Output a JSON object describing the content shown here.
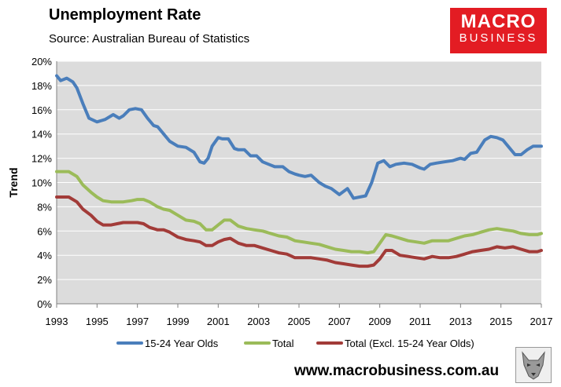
{
  "header": {
    "title": "Unemployment Rate",
    "subtitle": "Source: Australian Bureau of Statistics"
  },
  "logo": {
    "line1": "MACRO",
    "line2": "BUSINESS",
    "color": "#e31c23"
  },
  "footer": {
    "url": "www.macrobusiness.com.au",
    "icon": "wolf-icon"
  },
  "colors": {
    "plot_bg": "#dcdcdc",
    "youth": "#4a7ebb",
    "total": "#9bbb59",
    "excl": "#a23b38"
  },
  "chart_data": {
    "type": "line",
    "title": "Unemployment Rate",
    "xlabel": "",
    "ylabel": "Trend",
    "xlim": [
      1993,
      2017
    ],
    "ylim": [
      0,
      20
    ],
    "x_ticks": [
      1993,
      1995,
      1997,
      1999,
      2001,
      2003,
      2005,
      2007,
      2009,
      2011,
      2013,
      2015,
      2017
    ],
    "x_tick_labels": [
      "1993",
      "1995",
      "1997",
      "1999",
      "2001",
      "2003",
      "2005",
      "2007",
      "2009",
      "2011",
      "2013",
      "2015",
      "2017"
    ],
    "y_ticks": [
      0,
      2,
      4,
      6,
      8,
      10,
      12,
      14,
      16,
      18,
      20
    ],
    "y_tick_labels": [
      "0%",
      "2%",
      "4%",
      "6%",
      "8%",
      "10%",
      "12%",
      "14%",
      "16%",
      "18%",
      "20%"
    ],
    "legend_position": "bottom",
    "series": [
      {
        "name": "15-24 Year Olds",
        "color": "#4a7ebb",
        "x": [
          1993.0,
          1993.2,
          1993.5,
          1993.8,
          1994.0,
          1994.3,
          1994.6,
          1995.0,
          1995.4,
          1995.8,
          1996.1,
          1996.3,
          1996.6,
          1996.9,
          1997.2,
          1997.5,
          1997.8,
          1998.0,
          1998.3,
          1998.6,
          1999.0,
          1999.4,
          1999.8,
          2000.1,
          2000.3,
          2000.5,
          2000.7,
          2001.0,
          2001.2,
          2001.5,
          2001.8,
          2002.0,
          2002.3,
          2002.6,
          2002.9,
          2003.2,
          2003.5,
          2003.8,
          2004.2,
          2004.5,
          2004.8,
          2005.0,
          2005.3,
          2005.6,
          2006.0,
          2006.3,
          2006.6,
          2007.0,
          2007.4,
          2007.7,
          2008.0,
          2008.3,
          2008.6,
          2008.9,
          2009.2,
          2009.5,
          2009.8,
          2010.2,
          2010.6,
          2011.0,
          2011.2,
          2011.5,
          2011.8,
          2012.2,
          2012.6,
          2013.0,
          2013.2,
          2013.5,
          2013.8,
          2014.2,
          2014.5,
          2014.8,
          2015.1,
          2015.4,
          2015.7,
          2016.0,
          2016.3,
          2016.6,
          2016.9,
          2017.0
        ],
        "values": [
          18.8,
          18.4,
          18.6,
          18.3,
          17.8,
          16.5,
          15.3,
          15.0,
          15.2,
          15.6,
          15.3,
          15.5,
          16.0,
          16.1,
          16.0,
          15.3,
          14.7,
          14.6,
          14.0,
          13.4,
          13.0,
          12.9,
          12.5,
          11.7,
          11.6,
          12.0,
          13.0,
          13.7,
          13.6,
          13.6,
          12.8,
          12.7,
          12.7,
          12.2,
          12.2,
          11.7,
          11.5,
          11.3,
          11.3,
          10.9,
          10.7,
          10.6,
          10.5,
          10.6,
          10.0,
          9.7,
          9.5,
          9.0,
          9.5,
          8.7,
          8.8,
          8.9,
          10.0,
          11.6,
          11.8,
          11.3,
          11.5,
          11.6,
          11.5,
          11.2,
          11.1,
          11.5,
          11.6,
          11.7,
          11.8,
          12.0,
          11.9,
          12.4,
          12.5,
          13.5,
          13.8,
          13.7,
          13.5,
          12.9,
          12.3,
          12.3,
          12.7,
          13.0,
          13.0,
          13.0
        ]
      },
      {
        "name": "Total",
        "color": "#9bbb59",
        "x": [
          1993.0,
          1993.3,
          1993.6,
          1994.0,
          1994.3,
          1994.7,
          1995.0,
          1995.3,
          1995.7,
          1996.0,
          1996.3,
          1996.7,
          1997.0,
          1997.3,
          1997.6,
          1998.0,
          1998.3,
          1998.6,
          1999.0,
          1999.4,
          1999.8,
          2000.1,
          2000.4,
          2000.7,
          2001.0,
          2001.3,
          2001.6,
          2002.0,
          2002.4,
          2002.8,
          2003.2,
          2003.6,
          2004.0,
          2004.4,
          2004.8,
          2005.2,
          2005.6,
          2006.0,
          2006.4,
          2006.8,
          2007.2,
          2007.6,
          2008.0,
          2008.4,
          2008.7,
          2009.0,
          2009.3,
          2009.6,
          2010.0,
          2010.4,
          2010.8,
          2011.2,
          2011.6,
          2012.0,
          2012.4,
          2012.8,
          2013.2,
          2013.6,
          2014.0,
          2014.4,
          2014.8,
          2015.2,
          2015.6,
          2016.0,
          2016.4,
          2016.8,
          2017.0
        ],
        "values": [
          10.9,
          10.9,
          10.9,
          10.5,
          9.8,
          9.2,
          8.8,
          8.5,
          8.4,
          8.4,
          8.4,
          8.5,
          8.6,
          8.6,
          8.4,
          8.0,
          7.8,
          7.7,
          7.3,
          6.9,
          6.8,
          6.6,
          6.1,
          6.1,
          6.5,
          6.9,
          6.9,
          6.4,
          6.2,
          6.1,
          6.0,
          5.8,
          5.6,
          5.5,
          5.2,
          5.1,
          5.0,
          4.9,
          4.7,
          4.5,
          4.4,
          4.3,
          4.3,
          4.2,
          4.3,
          5.0,
          5.7,
          5.6,
          5.4,
          5.2,
          5.1,
          5.0,
          5.2,
          5.2,
          5.2,
          5.4,
          5.6,
          5.7,
          5.9,
          6.1,
          6.2,
          6.1,
          6.0,
          5.8,
          5.7,
          5.7,
          5.8
        ]
      },
      {
        "name": "Total (Excl. 15-24 Year Olds)",
        "color": "#a23b38",
        "x": [
          1993.0,
          1993.3,
          1993.6,
          1994.0,
          1994.3,
          1994.7,
          1995.0,
          1995.3,
          1995.7,
          1996.0,
          1996.3,
          1996.7,
          1997.0,
          1997.3,
          1997.6,
          1998.0,
          1998.3,
          1998.6,
          1999.0,
          1999.4,
          1999.8,
          2000.1,
          2000.4,
          2000.7,
          2001.0,
          2001.3,
          2001.6,
          2002.0,
          2002.4,
          2002.8,
          2003.2,
          2003.6,
          2004.0,
          2004.4,
          2004.8,
          2005.2,
          2005.6,
          2006.0,
          2006.4,
          2006.8,
          2007.2,
          2007.6,
          2008.0,
          2008.4,
          2008.7,
          2009.0,
          2009.3,
          2009.6,
          2010.0,
          2010.4,
          2010.8,
          2011.2,
          2011.6,
          2012.0,
          2012.4,
          2012.8,
          2013.2,
          2013.6,
          2014.0,
          2014.4,
          2014.8,
          2015.2,
          2015.6,
          2016.0,
          2016.4,
          2016.8,
          2017.0
        ],
        "values": [
          8.8,
          8.8,
          8.8,
          8.4,
          7.8,
          7.3,
          6.8,
          6.5,
          6.5,
          6.6,
          6.7,
          6.7,
          6.7,
          6.6,
          6.3,
          6.1,
          6.1,
          5.9,
          5.5,
          5.3,
          5.2,
          5.1,
          4.8,
          4.8,
          5.1,
          5.3,
          5.4,
          5.0,
          4.8,
          4.8,
          4.6,
          4.4,
          4.2,
          4.1,
          3.8,
          3.8,
          3.8,
          3.7,
          3.6,
          3.4,
          3.3,
          3.2,
          3.1,
          3.1,
          3.2,
          3.7,
          4.4,
          4.4,
          4.0,
          3.9,
          3.8,
          3.7,
          3.9,
          3.8,
          3.8,
          3.9,
          4.1,
          4.3,
          4.4,
          4.5,
          4.7,
          4.6,
          4.7,
          4.5,
          4.3,
          4.3,
          4.4
        ]
      }
    ]
  }
}
